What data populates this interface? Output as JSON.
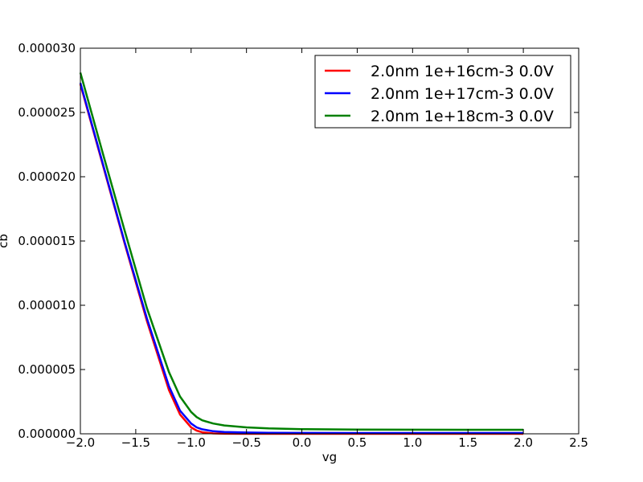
{
  "chart_data": {
    "type": "line",
    "title": "",
    "xlabel": "vg",
    "ylabel": "cb",
    "xlim": [
      -2.0,
      2.5
    ],
    "ylim": [
      0.0,
      3e-05
    ],
    "xticks": [
      -2.0,
      -1.5,
      -1.0,
      -0.5,
      0.0,
      0.5,
      1.0,
      1.5,
      2.0,
      2.5
    ],
    "xtick_labels": [
      "−2.0",
      "−1.5",
      "−1.0",
      "−0.5",
      "0.0",
      "0.5",
      "1.0",
      "1.5",
      "2.0",
      "2.5"
    ],
    "yticks": [
      0.0,
      5e-06,
      1e-05,
      1.5e-05,
      2e-05,
      2.5e-05,
      3e-05
    ],
    "ytick_labels": [
      "0.000000",
      "0.000005",
      "0.000010",
      "0.000015",
      "0.000020",
      "0.000025",
      "0.000030"
    ],
    "grid": false,
    "legend_position": "top-right",
    "x": [
      -2.0,
      -1.8,
      -1.6,
      -1.4,
      -1.2,
      -1.1,
      -1.0,
      -0.95,
      -0.9,
      -0.8,
      -0.7,
      -0.5,
      -0.3,
      0.0,
      0.5,
      1.0,
      1.5,
      2.0
    ],
    "series": [
      {
        "name": "2.0nm 1e+16cm-3 0.0V",
        "color": "#ff0000",
        "values": [
          2.72e-05,
          2.1e-05,
          1.48e-05,
          8.8e-06,
          3.4e-06,
          1.5e-06,
          5e-07,
          2.5e-07,
          1.2e-07,
          3e-08,
          1e-08,
          0.0,
          0.0,
          0.0,
          0.0,
          0.0,
          0.0,
          0.0
        ]
      },
      {
        "name": "2.0nm 1e+17cm-3 0.0V",
        "color": "#0000ff",
        "values": [
          2.73e-05,
          2.11e-05,
          1.49e-05,
          9e-06,
          3.7e-06,
          1.8e-06,
          8e-07,
          5e-07,
          3.5e-07,
          2e-07,
          1.4e-07,
          1e-07,
          8e-08,
          7e-08,
          6e-08,
          6e-08,
          6e-08,
          6e-08
        ]
      },
      {
        "name": "2.0nm 1e+18cm-3 0.0V",
        "color": "#008000",
        "values": [
          2.81e-05,
          2.19e-05,
          1.58e-05,
          9.8e-06,
          4.8e-06,
          2.9e-06,
          1.7e-06,
          1.3e-06,
          1.05e-06,
          8e-07,
          6.5e-07,
          5e-07,
          4.2e-07,
          3.6e-07,
          3.3e-07,
          3.2e-07,
          3.1e-07,
          3.1e-07
        ]
      }
    ]
  }
}
